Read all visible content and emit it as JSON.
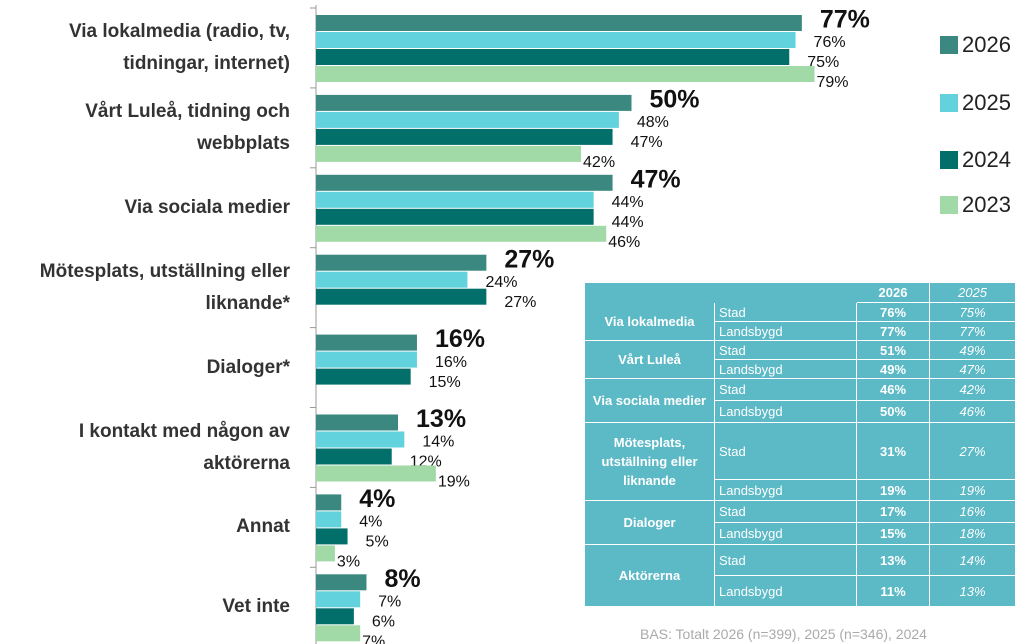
{
  "chart_data": {
    "type": "bar",
    "orientation": "horizontal",
    "categories": [
      "Via lokalmedia (radio, tv, tidningar, internet)",
      "Vårt Luleå, tidning och webbplats",
      "Via sociala medier",
      "Mötesplats, utställning eller liknande*",
      "Dialoger*",
      "I kontakt med någon av aktörerna",
      "Annat",
      "Vet inte"
    ],
    "xlim": [
      0,
      100
    ],
    "series": [
      {
        "name": "2026",
        "color": "#3a887f",
        "values": [
          77,
          50,
          47,
          27,
          16,
          13,
          4,
          8
        ],
        "value_labels": [
          "77%",
          "50%",
          "47%",
          "27%",
          "16%",
          "13%",
          "4%",
          "8%"
        ]
      },
      {
        "name": "2025",
        "color": "#62d2dc",
        "values": [
          76,
          48,
          44,
          24,
          16,
          14,
          4,
          7
        ],
        "value_labels": [
          "76%",
          "48%",
          "44%",
          "24%",
          "16%",
          "14%",
          "4%",
          "7%"
        ]
      },
      {
        "name": "2024",
        "color": "#036f6b",
        "values": [
          75,
          47,
          44,
          27,
          15,
          12,
          5,
          6
        ],
        "value_labels": [
          "75%",
          "47%",
          "44%",
          "27%",
          "15%",
          "12%",
          "5%",
          "6%"
        ]
      },
      {
        "name": "2023",
        "color": "#a2daa7",
        "values": [
          79,
          42,
          46,
          null,
          null,
          19,
          3,
          7
        ],
        "value_labels": [
          "79%",
          "42%",
          "46%",
          null,
          null,
          "19%",
          "3%",
          "7%"
        ]
      }
    ],
    "legend": "right"
  },
  "table": {
    "header": [
      "2026",
      "2025"
    ],
    "groups": [
      {
        "label": "Via lokalmedia",
        "rows": [
          [
            "Stad",
            "76%",
            "75%"
          ],
          [
            "Landsbygd",
            "77%",
            "77%"
          ]
        ]
      },
      {
        "label": "Vårt Luleå",
        "rows": [
          [
            "Stad",
            "51%",
            "49%"
          ],
          [
            "Landsbygd",
            "49%",
            "47%"
          ]
        ]
      },
      {
        "label": "Via sociala medier",
        "rows": [
          [
            "Stad",
            "46%",
            "42%"
          ],
          [
            "Landsbygd",
            "50%",
            "46%"
          ]
        ]
      },
      {
        "label": "Mötesplats, utställning eller liknande",
        "rows": [
          [
            "Stad",
            "31%",
            "27%"
          ],
          [
            "Landsbygd",
            "19%",
            "19%"
          ]
        ]
      },
      {
        "label": "Dialoger",
        "rows": [
          [
            "Stad",
            "17%",
            "16%"
          ],
          [
            "Landsbygd",
            "15%",
            "18%"
          ]
        ]
      },
      {
        "label": "Aktörerna",
        "rows": [
          [
            "Stad",
            "13%",
            "14%"
          ],
          [
            "Landsbygd",
            "11%",
            "13%"
          ]
        ]
      }
    ]
  },
  "footnote": "BAS: Totalt 2026 (n=399), 2025 (n=346), 2024"
}
